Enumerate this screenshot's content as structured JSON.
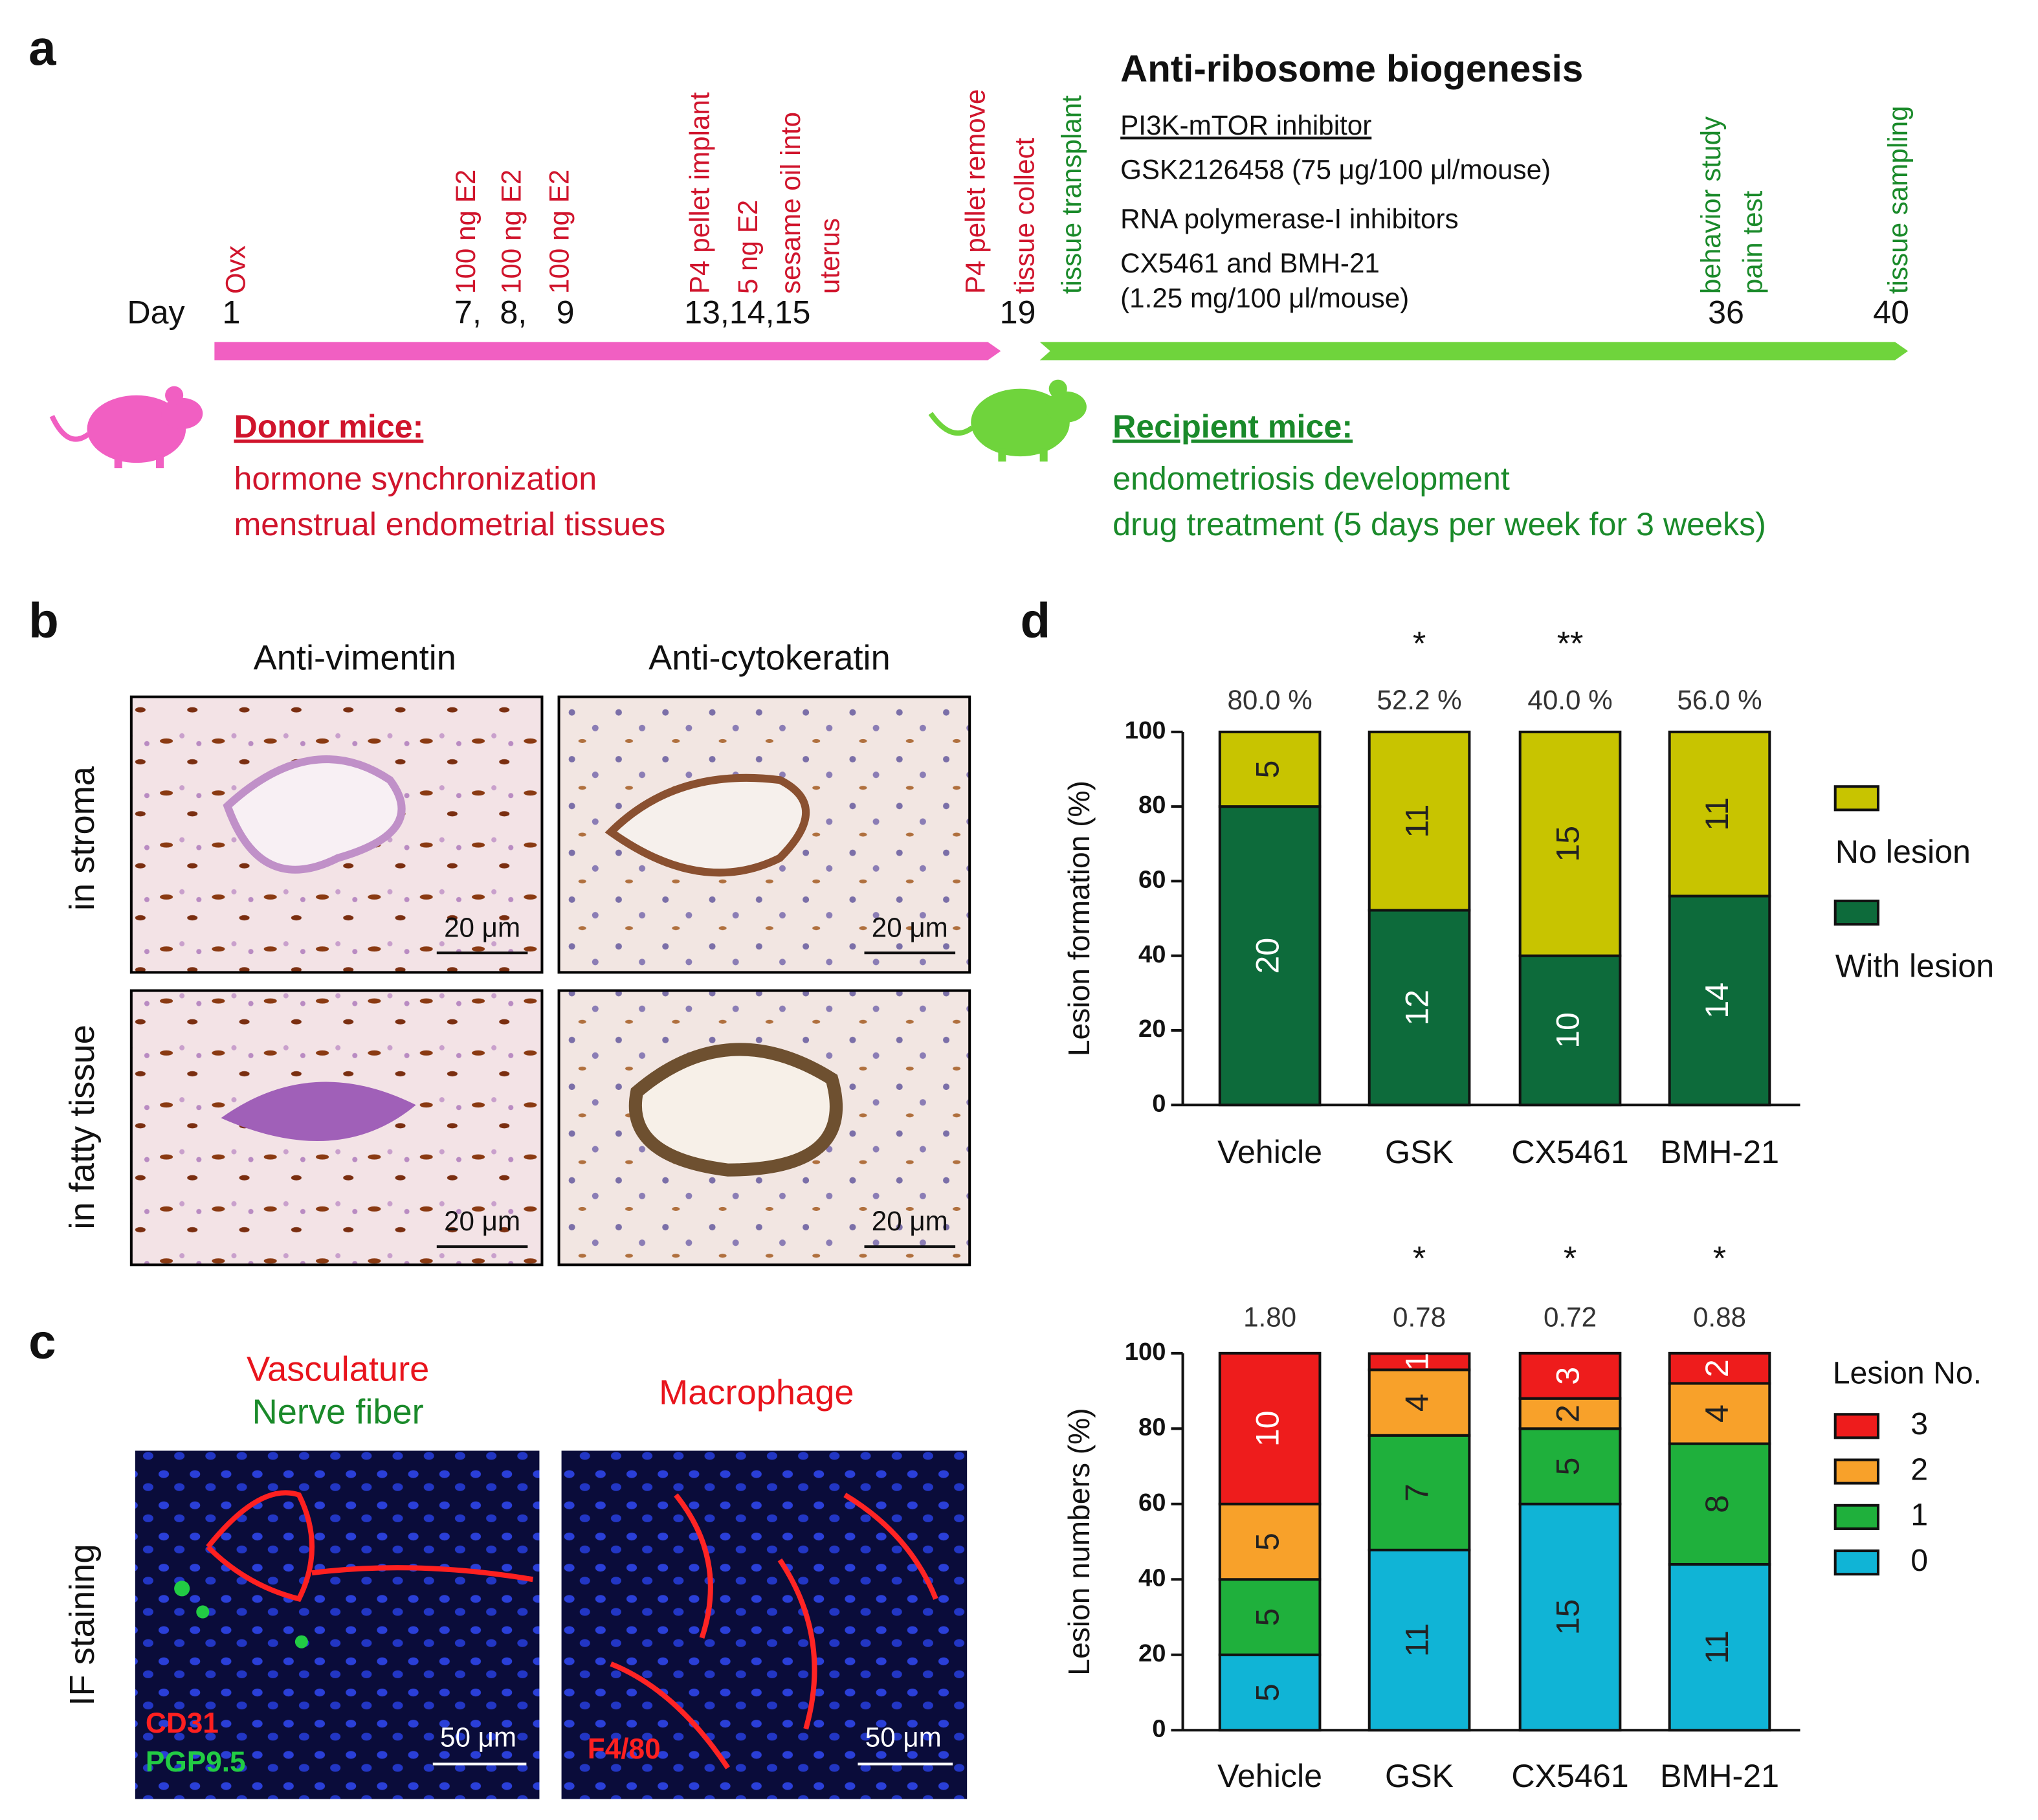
{
  "panel_a": {
    "label": "a",
    "day_label": "Day",
    "days": [
      "1",
      "7,",
      "8,",
      "9",
      "13,14,15",
      "19",
      "36",
      "40"
    ],
    "events": [
      {
        "text": "Ovx",
        "color": "#d0142c"
      },
      {
        "text": "100 ng E2",
        "color": "#d0142c"
      },
      {
        "text": "100 ng E2",
        "color": "#d0142c"
      },
      {
        "text": "100 ng E2",
        "color": "#d0142c"
      },
      {
        "text": "P4 pellet implant",
        "color": "#d0142c"
      },
      {
        "text": "5 ng E2",
        "color": "#d0142c"
      },
      {
        "text": "sesame oil into",
        "color": "#d0142c"
      },
      {
        "text": "uterus",
        "color": "#d0142c"
      },
      {
        "text": "P4 pellet remove",
        "color": "#d0142c"
      },
      {
        "text": "tissue collect",
        "color": "#d0142c"
      },
      {
        "text": "tissue transplant",
        "color": "#1a8a2a"
      },
      {
        "text": "behavior study",
        "color": "#1a8a2a"
      },
      {
        "text": "pain test",
        "color": "#1a8a2a"
      },
      {
        "text": "tissue sampling",
        "color": "#1a8a2a"
      }
    ],
    "treatment": {
      "title": "Anti-ribosome biogenesis",
      "lines": [
        "PI3K-mTOR inhibitor",
        "GSK2126458 (75 μg/100 μl/mouse)",
        "RNA polymerase-I inhibitors",
        "CX5461 and BMH-21",
        "(1.25 mg/100 μl/mouse)"
      ]
    },
    "donor": {
      "title": "Donor mice:",
      "lines": [
        "hormone synchronization",
        "menstrual endometrial tissues"
      ],
      "color": "#d0142c"
    },
    "recipient": {
      "title": "Recipient mice:",
      "lines": [
        "endometriosis development",
        "drug treatment (5 days per week for 3 weeks)"
      ],
      "color": "#1a8a2a"
    }
  },
  "panel_b": {
    "label": "b",
    "columns": [
      "Anti-vimentin",
      "Anti-cytokeratin"
    ],
    "rows": [
      "in stroma",
      "in fatty tissue"
    ],
    "scale_bar": "20 μm"
  },
  "panel_c": {
    "label": "c",
    "left_title": [
      "Vasculature",
      "Nerve fiber"
    ],
    "right_title": "Macrophage",
    "row_label": "IF staining",
    "left_stains": [
      "CD31",
      "PGP9.5"
    ],
    "right_stain": "F4/80",
    "scale_bar": "50 μm"
  },
  "panel_d": {
    "label": "d"
  },
  "chart_data": [
    {
      "type": "bar",
      "stacked": true,
      "ylabel": "Lesion formation (%)",
      "categories": [
        "Vehicle",
        "GSK",
        "CX5461",
        "BMH-21"
      ],
      "ylim": [
        0,
        100
      ],
      "yticks": [
        0,
        20,
        40,
        60,
        80,
        100
      ],
      "top_labels": [
        "80.0 %",
        "52.2 %",
        "40.0 %",
        "56.0 %"
      ],
      "significance": [
        null,
        "*",
        "**",
        null
      ],
      "series": [
        {
          "name": "With lesion",
          "color": "#0d6b3b",
          "label_color": "#ffffff",
          "values": [
            80,
            52.2,
            40,
            56
          ],
          "counts": [
            20,
            12,
            10,
            14
          ]
        },
        {
          "name": "No lesion",
          "color": "#c8c400",
          "label_color": "#222222",
          "values": [
            20,
            47.8,
            60,
            44
          ],
          "counts": [
            5,
            11,
            15,
            11
          ]
        }
      ]
    },
    {
      "type": "bar",
      "stacked": true,
      "ylabel": "Lesion numbers (%)",
      "legend_title": "Lesion No.",
      "categories": [
        "Vehicle",
        "GSK",
        "CX5461",
        "BMH-21"
      ],
      "ylim": [
        0,
        100
      ],
      "yticks": [
        0,
        20,
        40,
        60,
        80,
        100
      ],
      "top_labels": [
        "1.80",
        "0.78",
        "0.72",
        "0.88"
      ],
      "significance": [
        null,
        "*",
        "*",
        "*"
      ],
      "series": [
        {
          "name": "0",
          "color": "#10b4d6",
          "label_color": "#222222",
          "values": [
            20,
            47.8,
            60,
            44
          ],
          "counts": [
            5,
            11,
            15,
            11
          ]
        },
        {
          "name": "1",
          "color": "#1fb03c",
          "label_color": "#222222",
          "values": [
            20,
            30.4,
            20,
            32
          ],
          "counts": [
            5,
            7,
            5,
            8
          ]
        },
        {
          "name": "2",
          "color": "#f8a12a",
          "label_color": "#222222",
          "values": [
            20,
            17.4,
            8,
            16
          ],
          "counts": [
            5,
            4,
            2,
            4
          ]
        },
        {
          "name": "3",
          "color": "#ee1c1c",
          "label_color": "#ffffff",
          "values": [
            40,
            4.3,
            12,
            8
          ],
          "counts": [
            10,
            1,
            3,
            2
          ]
        }
      ]
    }
  ]
}
